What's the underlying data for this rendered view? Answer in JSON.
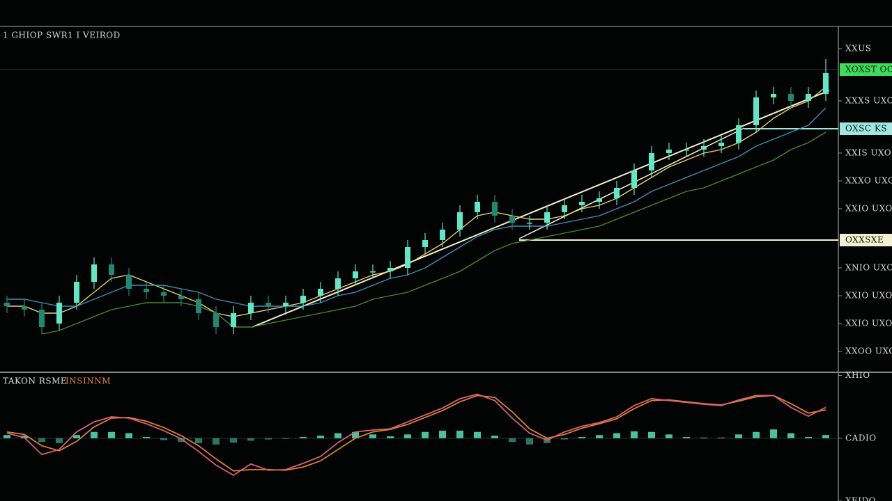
{
  "chart_data": [
    {
      "type": "candlestick",
      "title": "1 GHIOP SWR1 I VEIROD",
      "ylim": [
        0,
        99
      ],
      "yticks": [
        {
          "value": 93,
          "label": "XXUS"
        },
        {
          "value": 78,
          "label": "XXXS UXO"
        },
        {
          "value": 63,
          "label": "XXIS UXO"
        },
        {
          "value": 55,
          "label": "XXXO UXO"
        },
        {
          "value": 47,
          "label": "XXIO UXO"
        },
        {
          "value": 30,
          "label": "XNIO UXO"
        },
        {
          "value": 22,
          "label": "XXIO UXO"
        },
        {
          "value": 14,
          "label": "XXIO UXO"
        },
        {
          "value": 6,
          "label": "XXOO UXO"
        }
      ],
      "up_color": "#5ee8c8",
      "down_color": "#1f8a74",
      "open": [
        20,
        19,
        18,
        14,
        20,
        26,
        31,
        28,
        24,
        23,
        22,
        21,
        17,
        13,
        17,
        20,
        19,
        20,
        22,
        24,
        27,
        29,
        29,
        30,
        36,
        38,
        41,
        46,
        49,
        45,
        43,
        43,
        46,
        48,
        49,
        50,
        53,
        58,
        63,
        64,
        64,
        65,
        66,
        71,
        79,
        80,
        78,
        80
      ],
      "high": [
        22,
        21,
        20,
        22,
        28,
        33,
        33,
        30,
        26,
        25,
        24,
        23,
        19,
        19,
        22,
        22,
        22,
        24,
        26,
        29,
        31,
        31,
        32,
        38,
        40,
        43,
        48,
        51,
        51,
        47,
        45,
        48,
        50,
        51,
        52,
        55,
        60,
        65,
        66,
        66,
        67,
        68,
        73,
        81,
        82,
        82,
        82,
        90
      ],
      "low": [
        17,
        16,
        11,
        12,
        18,
        24,
        26,
        22,
        21,
        20,
        19,
        15,
        11,
        11,
        15,
        17,
        17,
        18,
        20,
        22,
        25,
        27,
        27,
        28,
        34,
        36,
        39,
        44,
        43,
        41,
        41,
        41,
        44,
        46,
        47,
        48,
        51,
        56,
        61,
        62,
        62,
        63,
        64,
        69,
        77,
        76,
        76,
        78
      ],
      "close": [
        19,
        18,
        13,
        20,
        26,
        31,
        28,
        24,
        23,
        22,
        21,
        17,
        13,
        17,
        20,
        19,
        20,
        22,
        24,
        27,
        29,
        29,
        30,
        36,
        38,
        41,
        46,
        49,
        45,
        43,
        43,
        46,
        48,
        49,
        50,
        53,
        58,
        63,
        64,
        64,
        65,
        66,
        71,
        79,
        80,
        78,
        80,
        86
      ],
      "series": [
        {
          "color": "#e8d36a",
          "values": [
            19,
            19,
            17,
            17,
            19,
            23,
            27,
            28,
            26,
            24,
            22,
            20,
            17,
            16,
            17,
            18,
            19,
            20,
            22,
            24,
            26,
            28,
            29,
            31,
            34,
            37,
            41,
            45,
            46,
            45,
            44,
            44,
            45,
            47,
            48,
            50,
            53,
            56,
            59,
            61,
            63,
            64,
            66,
            69,
            73,
            76,
            78,
            82
          ]
        },
        {
          "color": "#3f8fb8",
          "values": [
            21,
            21,
            20,
            19,
            19,
            21,
            23,
            25,
            25,
            25,
            24,
            23,
            21,
            20,
            19,
            19,
            19,
            19,
            20,
            22,
            23,
            25,
            27,
            28,
            30,
            33,
            36,
            39,
            41,
            42,
            42,
            42,
            43,
            44,
            45,
            47,
            49,
            52,
            54,
            56,
            58,
            60,
            62,
            65,
            67,
            69,
            71,
            76
          ]
        },
        {
          "color": "#4c8a2a",
          "values": [
            null,
            null,
            11,
            12,
            14,
            16,
            18,
            19,
            20,
            20,
            20,
            19,
            17,
            13,
            13,
            14,
            15,
            16,
            17,
            18,
            19,
            21,
            22,
            23,
            25,
            27,
            29,
            32,
            35,
            37,
            38,
            39,
            40,
            41,
            42,
            44,
            46,
            48,
            50,
            52,
            53,
            55,
            57,
            59,
            61,
            64,
            66,
            69
          ]
        }
      ],
      "price_lines": [
        {
          "value": 87,
          "label": "XOXST OC",
          "color": "#3ddc5a"
        },
        {
          "value": 70,
          "label": "OXSC KS",
          "color": "#9fe8e0"
        },
        {
          "value": 38,
          "label": "OXXSXE",
          "color": "#f2f0d0"
        }
      ]
    },
    {
      "type": "macd",
      "title": "TAKON RSME",
      "subtitle": "INSINNM",
      "ylim": [
        -1,
        1.05
      ],
      "yticks": [
        {
          "value": 1,
          "label": "XHIO"
        },
        {
          "value": 0,
          "label": "CADIO"
        },
        {
          "value": -1,
          "label": "XEIDO"
        }
      ],
      "histogram_color": "#4fd6b2",
      "histogram": [
        0.05,
        0.04,
        -0.06,
        -0.08,
        0.05,
        0.1,
        0.1,
        0.08,
        0.02,
        -0.03,
        -0.06,
        -0.08,
        -0.1,
        -0.07,
        -0.04,
        -0.02,
        -0.01,
        0.02,
        0.04,
        0.08,
        0.1,
        0.06,
        0.03,
        0.06,
        0.1,
        0.12,
        0.12,
        0.1,
        0.04,
        -0.06,
        -0.1,
        -0.08,
        -0.02,
        0.02,
        0.05,
        0.08,
        0.11,
        0.1,
        0.06,
        0.02,
        0.01,
        0.01,
        0.06,
        0.1,
        0.14,
        0.08,
        0.02,
        0.05
      ],
      "series": [
        {
          "color": "#d8607a",
          "values": [
            0.08,
            0.01,
            -0.26,
            -0.18,
            0.1,
            0.26,
            0.34,
            0.32,
            0.23,
            0.12,
            -0.01,
            -0.21,
            -0.43,
            -0.59,
            -0.41,
            -0.51,
            -0.5,
            -0.4,
            -0.29,
            -0.07,
            0.1,
            0.13,
            0.15,
            0.26,
            0.37,
            0.48,
            0.63,
            0.7,
            0.6,
            0.32,
            0.08,
            -0.03,
            0.1,
            0.19,
            0.25,
            0.34,
            0.52,
            0.63,
            0.6,
            0.57,
            0.54,
            0.52,
            0.61,
            0.68,
            0.68,
            0.49,
            0.35,
            0.49
          ]
        },
        {
          "color": "#d9822b",
          "values": [
            0.1,
            0.06,
            -0.12,
            -0.2,
            -0.05,
            0.18,
            0.32,
            0.33,
            0.27,
            0.17,
            0.04,
            -0.12,
            -0.33,
            -0.52,
            -0.5,
            -0.5,
            -0.51,
            -0.46,
            -0.36,
            -0.18,
            0.0,
            0.1,
            0.14,
            0.22,
            0.33,
            0.44,
            0.58,
            0.68,
            0.65,
            0.42,
            0.15,
            0.0,
            0.06,
            0.16,
            0.23,
            0.31,
            0.47,
            0.6,
            0.61,
            0.58,
            0.55,
            0.53,
            0.59,
            0.66,
            0.68,
            0.55,
            0.4,
            0.45
          ]
        }
      ]
    }
  ]
}
